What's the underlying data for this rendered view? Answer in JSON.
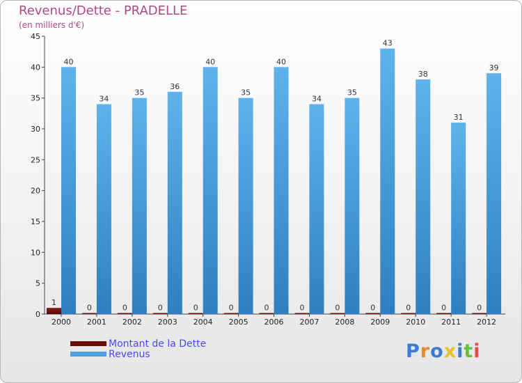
{
  "header": {
    "title": "Revenus/Dette - PRADELLE",
    "subtitle": "(en milliers d'€)"
  },
  "chart_data": {
    "type": "bar",
    "title": "Revenus/Dette - PRADELLE",
    "ylabel": "(en milliers d'€)",
    "xlabel": "",
    "ylim": [
      0,
      45
    ],
    "yticks": [
      0,
      5,
      10,
      15,
      20,
      25,
      30,
      35,
      40,
      45
    ],
    "grid": false,
    "legend_position": "bottom-left",
    "categories": [
      "2000",
      "2001",
      "2002",
      "2003",
      "2004",
      "2005",
      "2006",
      "2007",
      "2008",
      "2009",
      "2010",
      "2011",
      "2012"
    ],
    "series": [
      {
        "name": "Montant de la Dette",
        "color": "#6b0a0a",
        "values": [
          1,
          0,
          0,
          0,
          0,
          0,
          0,
          0,
          0,
          0,
          0,
          0,
          0
        ]
      },
      {
        "name": "Revenus",
        "color": "#4aa3e0",
        "values": [
          40,
          34,
          35,
          36,
          40,
          35,
          40,
          34,
          35,
          43,
          38,
          31,
          39
        ]
      }
    ]
  },
  "legend": [
    {
      "label": "Montant de la Dette",
      "color": "#6b0a0a"
    },
    {
      "label": "Revenus",
      "color": "#4aa3e0"
    }
  ],
  "logo": {
    "letters": [
      "P",
      "r",
      "o",
      "x",
      "i",
      "t",
      "i"
    ],
    "colors": [
      "#3a7bd5",
      "#e88a2a",
      "#3a7bd5",
      "#e8c22a",
      "#3a7bd5",
      "#6abf3a",
      "#e84a4a"
    ]
  }
}
